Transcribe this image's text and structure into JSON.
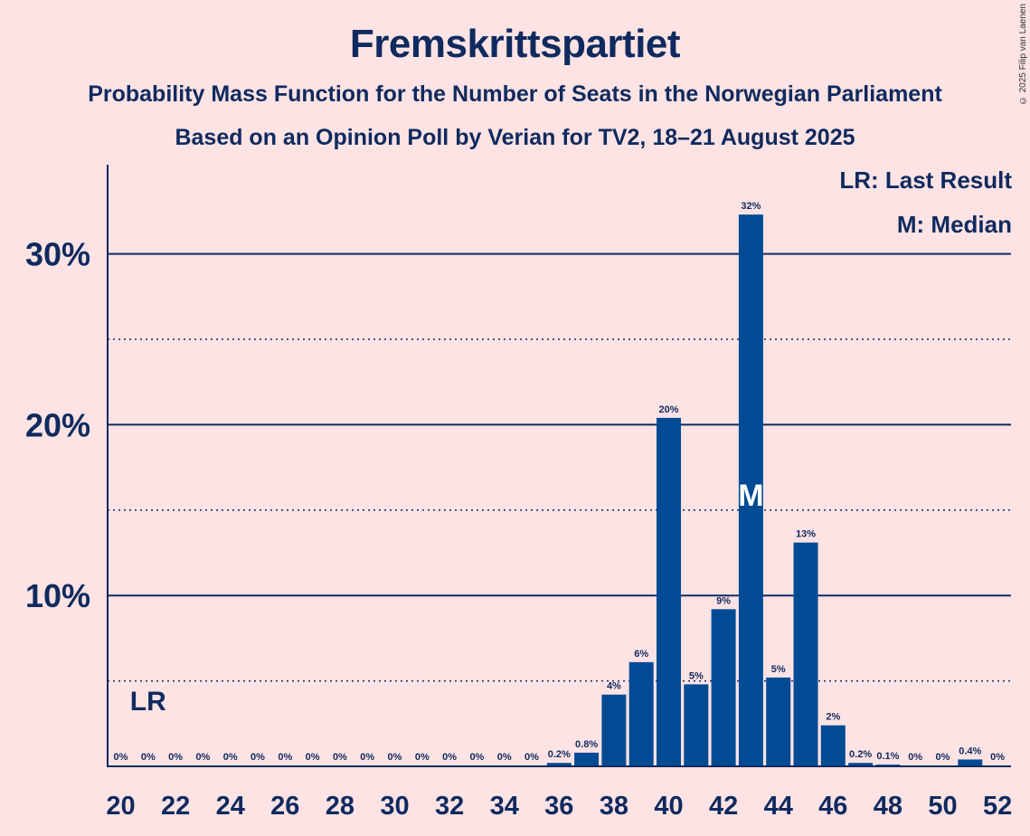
{
  "chart_data": {
    "type": "bar",
    "title": "Fremskrittspartiet",
    "subtitle": "Probability Mass Function for the Number of Seats in the Norwegian Parliament",
    "subtitle2": "Based on an Opinion Poll by Verian for TV2, 18–21 August 2025",
    "copyright": "© 2025 Filip van Laenen",
    "legend": [
      "LR: Last Result",
      "M: Median"
    ],
    "last_result": {
      "seat": 21,
      "label": "LR"
    },
    "median": {
      "seat": 43,
      "label": "M"
    },
    "x": [
      20,
      21,
      22,
      23,
      24,
      25,
      26,
      27,
      28,
      29,
      30,
      31,
      32,
      33,
      34,
      35,
      36,
      37,
      38,
      39,
      40,
      41,
      42,
      43,
      44,
      45,
      46,
      47,
      48,
      49,
      50,
      51,
      52
    ],
    "values": [
      0,
      0,
      0,
      0,
      0,
      0,
      0,
      0,
      0,
      0,
      0,
      0,
      0,
      0,
      0,
      0,
      0.2,
      0.8,
      4.2,
      6.1,
      20.4,
      4.8,
      9.2,
      32.3,
      5.2,
      13.1,
      2.4,
      0.2,
      0.1,
      0,
      0,
      0.4,
      0
    ],
    "labels": [
      "0%",
      "0%",
      "0%",
      "0%",
      "0%",
      "0%",
      "0%",
      "0%",
      "0%",
      "0%",
      "0%",
      "0%",
      "0%",
      "0%",
      "0%",
      "0%",
      "0.2%",
      "0.8%",
      "4%",
      "6%",
      "20%",
      "5%",
      "9%",
      "32%",
      "5%",
      "13%",
      "2%",
      "0.2%",
      "0.1%",
      "0%",
      "0%",
      "0.4%",
      "0%"
    ],
    "x_ticks": [
      "20",
      "22",
      "24",
      "26",
      "28",
      "30",
      "32",
      "34",
      "36",
      "38",
      "40",
      "42",
      "44",
      "46",
      "48",
      "50",
      "52"
    ],
    "y_ticks": [
      {
        "value": 10,
        "label": "10%"
      },
      {
        "value": 20,
        "label": "20%"
      },
      {
        "value": 30,
        "label": "30%"
      }
    ],
    "ylim": [
      0,
      35.3
    ],
    "colors": {
      "bar": "#004b94",
      "background": "#fde3e4",
      "text": "#0f2a5e"
    }
  }
}
